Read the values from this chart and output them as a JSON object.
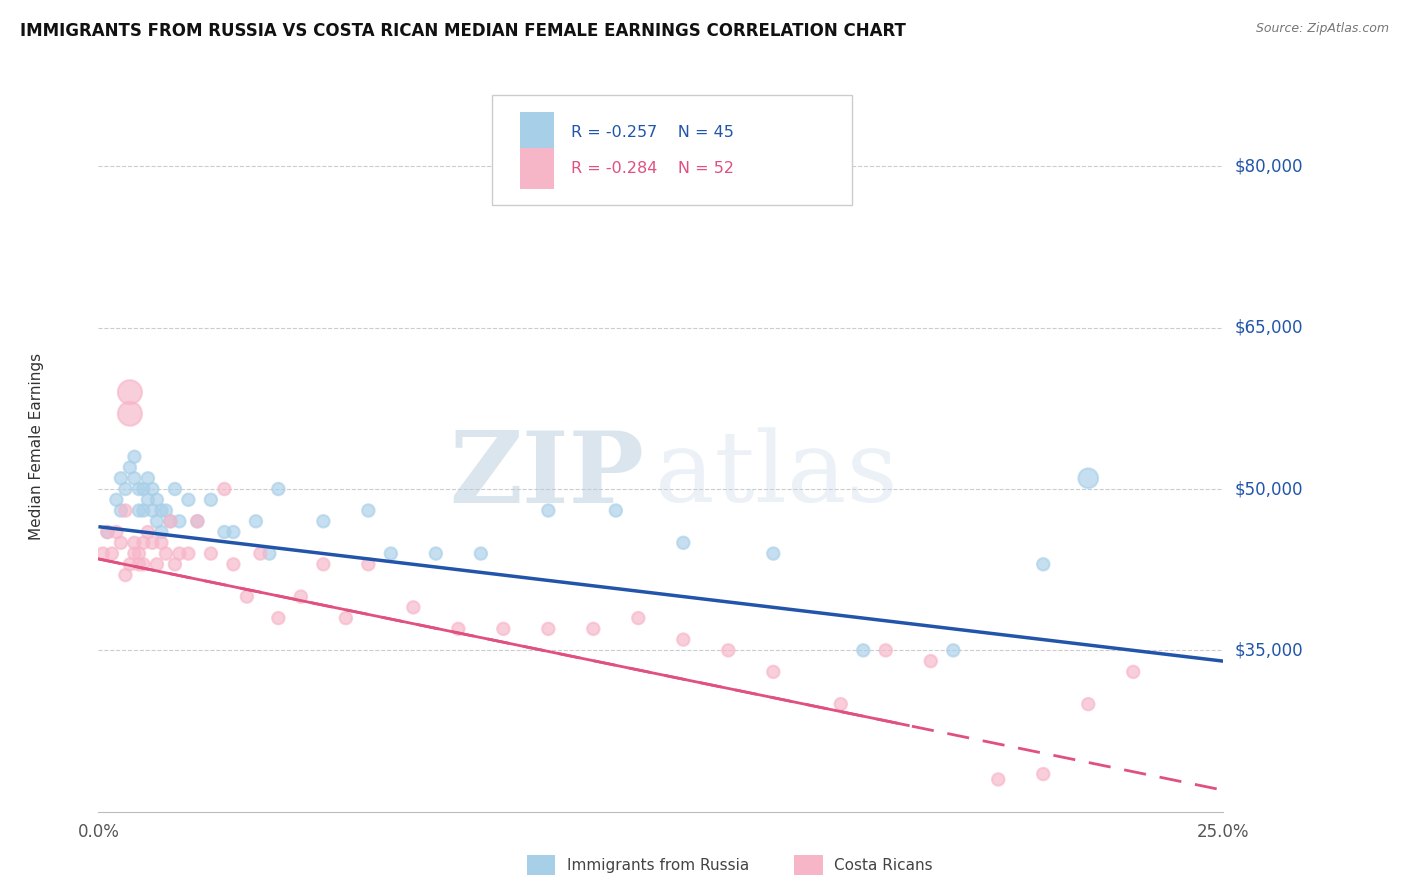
{
  "title": "IMMIGRANTS FROM RUSSIA VS COSTA RICAN MEDIAN FEMALE EARNINGS CORRELATION CHART",
  "source": "Source: ZipAtlas.com",
  "ylabel": "Median Female Earnings",
  "yticks": [
    35000,
    50000,
    65000,
    80000
  ],
  "ytick_labels": [
    "$35,000",
    "$50,000",
    "$65,000",
    "$80,000"
  ],
  "xlim": [
    0.0,
    0.25
  ],
  "ylim": [
    20000,
    88000
  ],
  "blue_R": "-0.257",
  "blue_N": "45",
  "pink_R": "-0.284",
  "pink_N": "52",
  "blue_scatter_color": "#a8cfe8",
  "pink_scatter_color": "#f7b5c8",
  "blue_line_color": "#2255aa",
  "pink_line_color": "#e05080",
  "legend_blue_label": "Immigrants from Russia",
  "legend_pink_label": "Costa Ricans",
  "watermark_zip": "ZIP",
  "watermark_atlas": "atlas",
  "blue_x": [
    0.002,
    0.004,
    0.005,
    0.005,
    0.006,
    0.007,
    0.008,
    0.008,
    0.009,
    0.009,
    0.01,
    0.01,
    0.011,
    0.011,
    0.012,
    0.012,
    0.013,
    0.013,
    0.014,
    0.014,
    0.015,
    0.016,
    0.017,
    0.018,
    0.02,
    0.022,
    0.025,
    0.028,
    0.03,
    0.035,
    0.038,
    0.04,
    0.05,
    0.06,
    0.065,
    0.075,
    0.085,
    0.1,
    0.115,
    0.13,
    0.15,
    0.17,
    0.19,
    0.21,
    0.22
  ],
  "blue_y": [
    46000,
    49000,
    48000,
    51000,
    50000,
    52000,
    51000,
    53000,
    50000,
    48000,
    50000,
    48000,
    51000,
    49000,
    50000,
    48000,
    49000,
    47000,
    48000,
    46000,
    48000,
    47000,
    50000,
    47000,
    49000,
    47000,
    49000,
    46000,
    46000,
    47000,
    44000,
    50000,
    47000,
    48000,
    44000,
    44000,
    44000,
    48000,
    48000,
    45000,
    44000,
    35000,
    35000,
    43000,
    51000
  ],
  "blue_sizes": [
    80,
    80,
    80,
    80,
    80,
    80,
    80,
    80,
    80,
    80,
    80,
    80,
    80,
    80,
    80,
    80,
    80,
    80,
    80,
    80,
    80,
    80,
    80,
    80,
    80,
    80,
    80,
    80,
    80,
    80,
    80,
    80,
    80,
    80,
    80,
    80,
    80,
    80,
    80,
    80,
    80,
    80,
    80,
    80,
    200
  ],
  "pink_x": [
    0.001,
    0.002,
    0.003,
    0.004,
    0.005,
    0.006,
    0.007,
    0.007,
    0.008,
    0.008,
    0.009,
    0.009,
    0.01,
    0.01,
    0.011,
    0.012,
    0.013,
    0.014,
    0.015,
    0.016,
    0.017,
    0.018,
    0.02,
    0.022,
    0.025,
    0.028,
    0.03,
    0.033,
    0.036,
    0.04,
    0.045,
    0.05,
    0.055,
    0.06,
    0.07,
    0.08,
    0.09,
    0.1,
    0.11,
    0.12,
    0.13,
    0.14,
    0.15,
    0.165,
    0.175,
    0.185,
    0.2,
    0.21,
    0.22,
    0.23,
    0.006,
    0.007
  ],
  "pink_y": [
    44000,
    46000,
    44000,
    46000,
    45000,
    48000,
    57000,
    59000,
    45000,
    44000,
    43000,
    44000,
    45000,
    43000,
    46000,
    45000,
    43000,
    45000,
    44000,
    47000,
    43000,
    44000,
    44000,
    47000,
    44000,
    50000,
    43000,
    40000,
    44000,
    38000,
    40000,
    43000,
    38000,
    43000,
    39000,
    37000,
    37000,
    37000,
    37000,
    38000,
    36000,
    35000,
    33000,
    30000,
    35000,
    34000,
    23000,
    23500,
    30000,
    33000,
    42000,
    43000
  ],
  "pink_sizes": [
    80,
    80,
    80,
    80,
    80,
    80,
    300,
    300,
    80,
    80,
    80,
    80,
    80,
    80,
    80,
    80,
    80,
    80,
    80,
    80,
    80,
    80,
    80,
    80,
    80,
    80,
    80,
    80,
    80,
    80,
    80,
    80,
    80,
    80,
    80,
    80,
    80,
    80,
    80,
    80,
    80,
    80,
    80,
    80,
    80,
    80,
    80,
    80,
    80,
    80,
    80,
    80
  ],
  "blue_line_x0": 0.0,
  "blue_line_y0": 46500,
  "blue_line_x1": 0.25,
  "blue_line_y1": 34000,
  "pink_line_x0": 0.0,
  "pink_line_y0": 43500,
  "pink_line_x1": 0.25,
  "pink_line_y1": 22000
}
